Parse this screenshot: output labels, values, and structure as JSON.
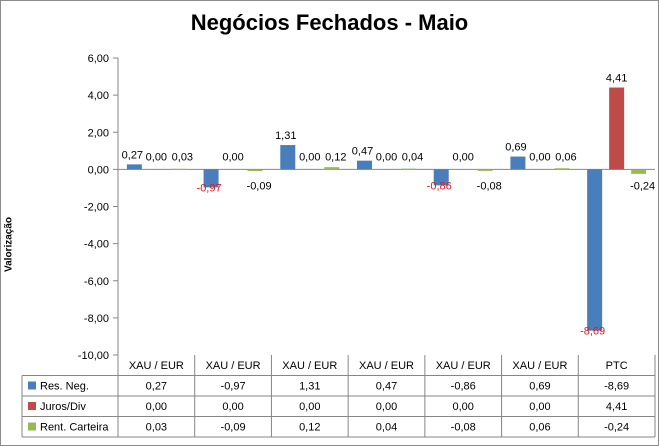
{
  "chart_data": {
    "type": "bar",
    "title": "Negócios Fechados - Maio",
    "ylabel": "Valorização",
    "xlabel": "",
    "ylim": [
      -10,
      6
    ],
    "y_ticks": [
      "6,00",
      "4,00",
      "2,00",
      "0,00",
      "-2,00",
      "-4,00",
      "-6,00",
      "-8,00",
      "-10,00"
    ],
    "grid": false,
    "legend": "data-table",
    "categories": [
      "XAU / EUR",
      "XAU / EUR",
      "XAU / EUR",
      "XAU / EUR",
      "XAU / EUR",
      "XAU / EUR",
      "PTC"
    ],
    "series": [
      {
        "name": "Res. Neg.",
        "color": "#4a7ebb",
        "values": [
          0.27,
          -0.97,
          1.31,
          0.47,
          -0.86,
          0.69,
          -8.69
        ],
        "labels": [
          "0,27",
          "-0,97",
          "1,31",
          "0,47",
          "-0,86",
          "0,69",
          "-8,69"
        ]
      },
      {
        "name": "Juros/Div",
        "color": "#be4b48",
        "values": [
          0.0,
          0.0,
          0.0,
          0.0,
          0.0,
          0.0,
          4.41
        ],
        "labels": [
          "0,00",
          "0,00",
          "0,00",
          "0,00",
          "0,00",
          "0,00",
          "4,41"
        ]
      },
      {
        "name": "Rent. Carteira",
        "color": "#98b954",
        "values": [
          0.03,
          -0.09,
          0.12,
          0.04,
          -0.08,
          0.06,
          -0.24
        ],
        "labels": [
          "0,03",
          "-0,09",
          "0,12",
          "0,04",
          "-0,08",
          "0,06",
          "-0,24"
        ]
      }
    ]
  }
}
